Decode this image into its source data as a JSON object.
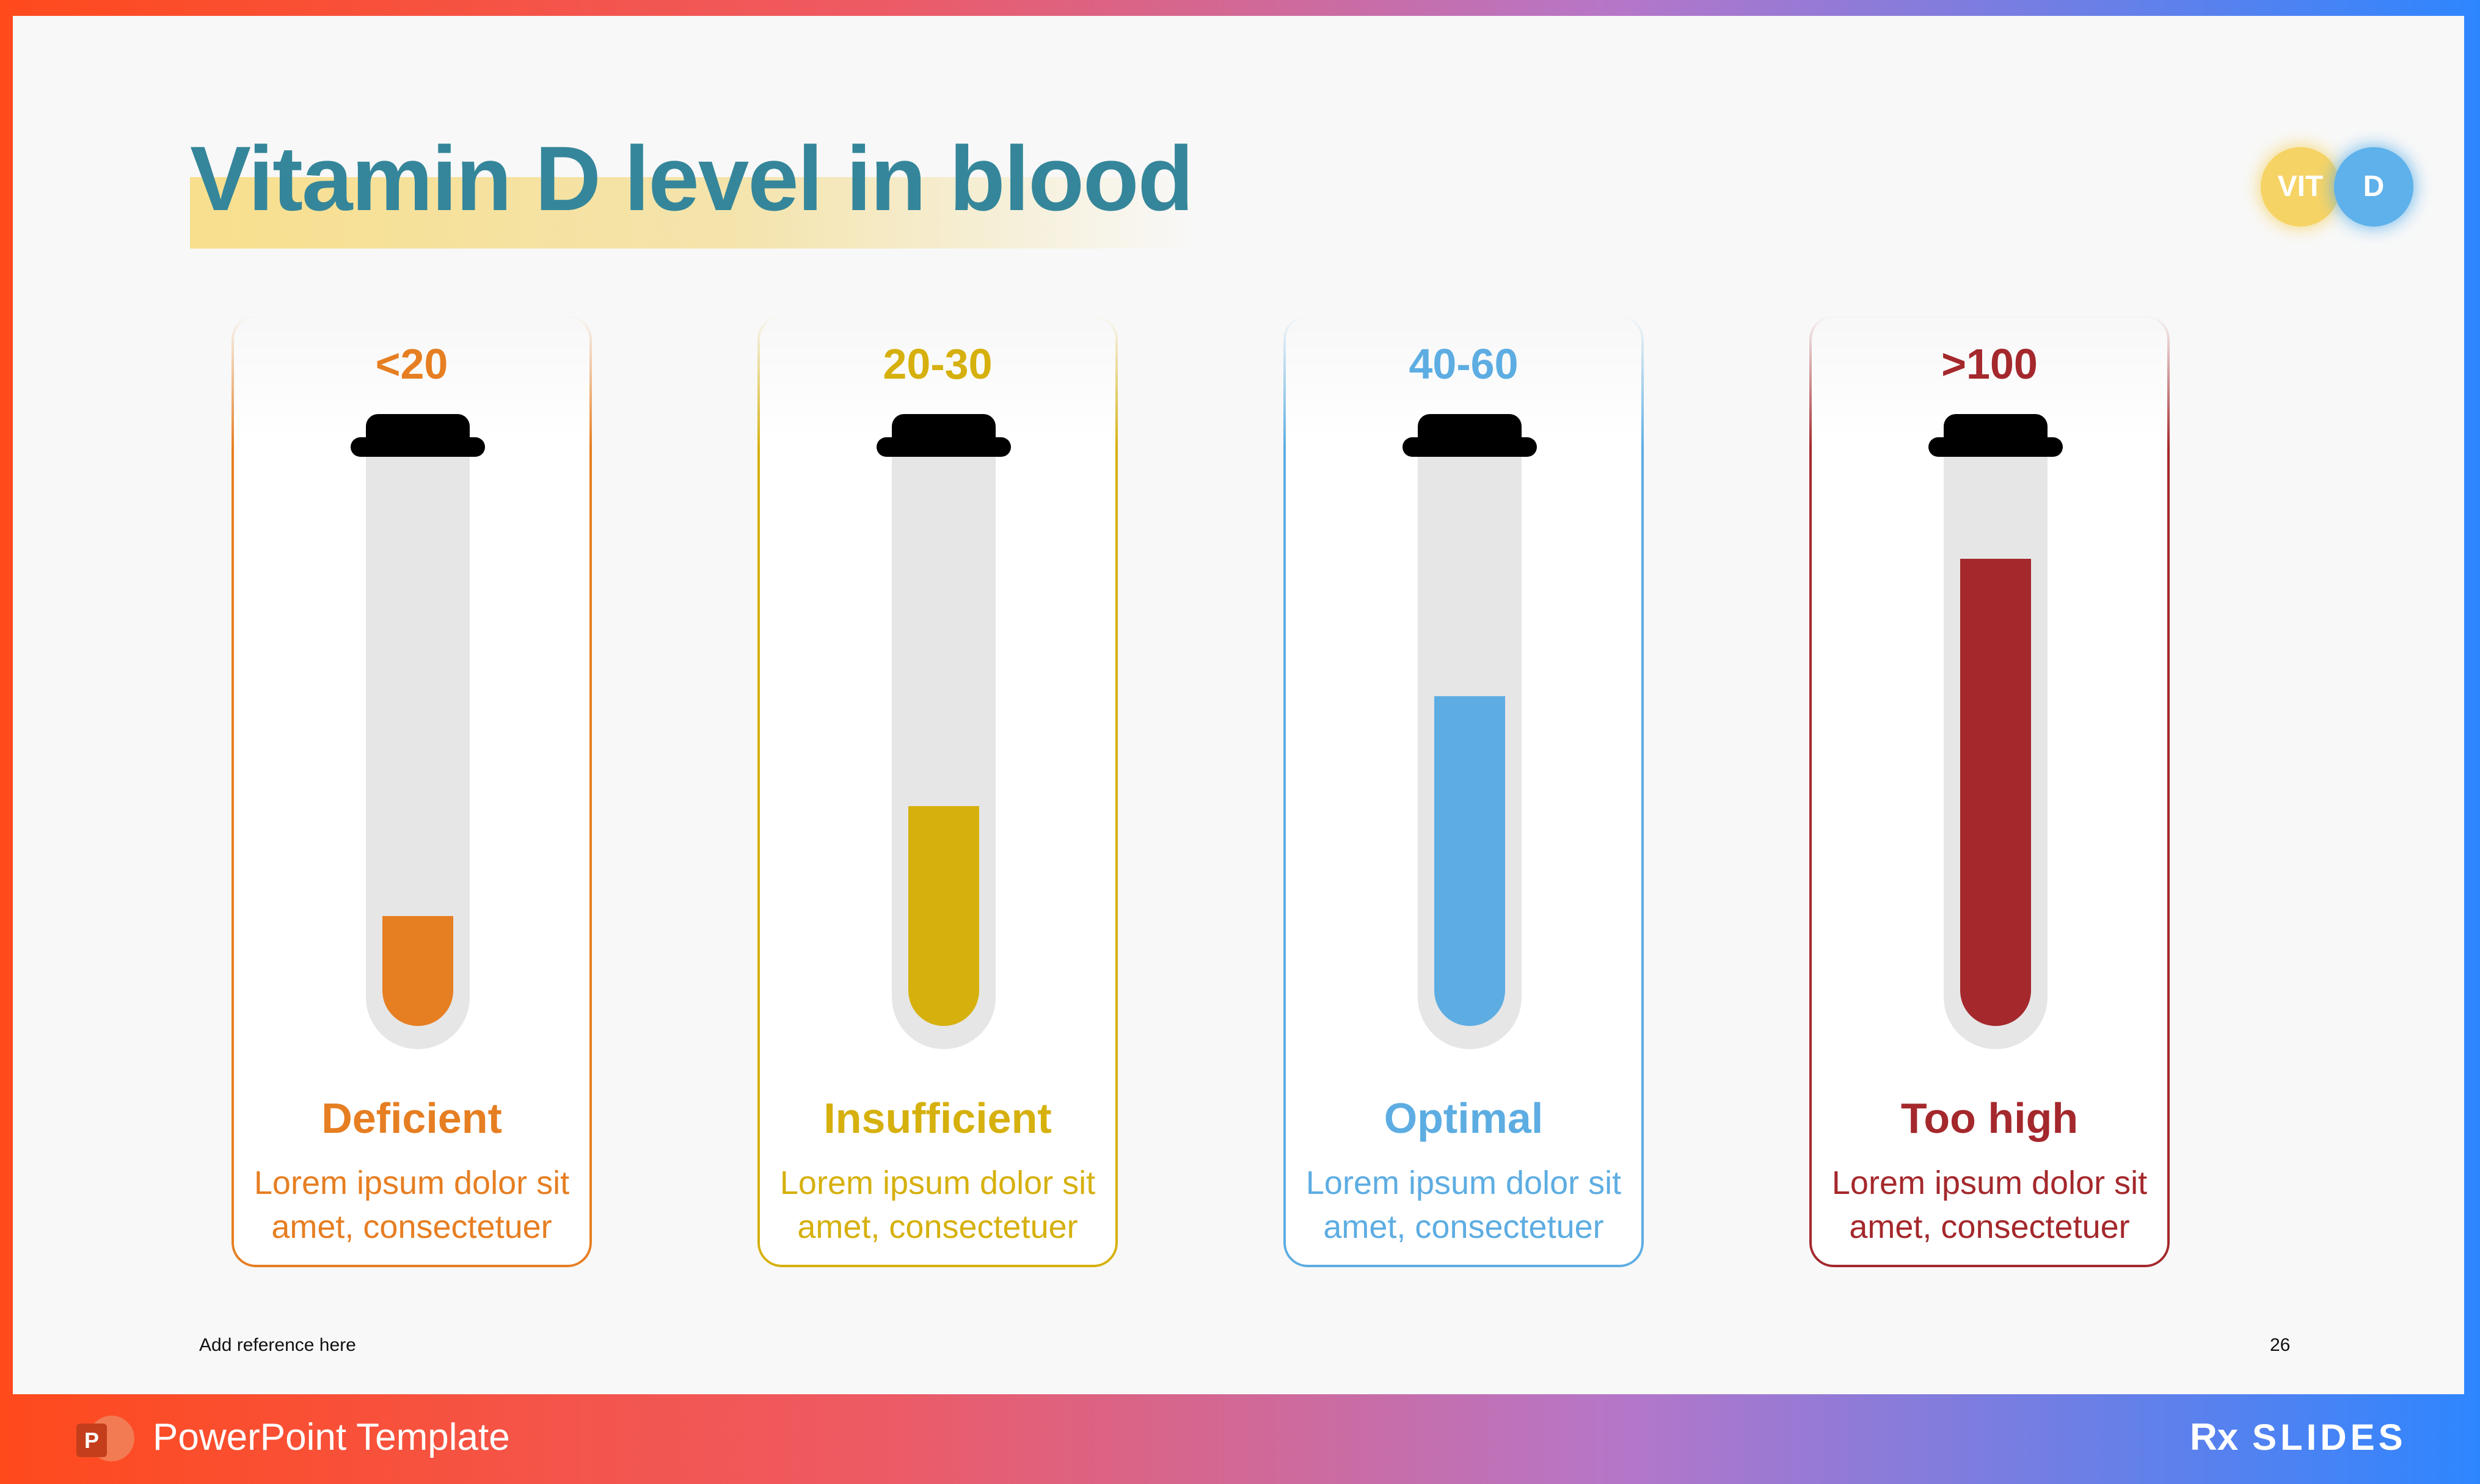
{
  "slide": {
    "title": "Vitamin D level in blood",
    "badge": {
      "left": "VIT",
      "right": "D"
    },
    "reference": "Add reference here",
    "page_number": "26"
  },
  "cards": [
    {
      "range": "<20",
      "status": "Deficient",
      "desc_line1": "Lorem ipsum dolor sit",
      "desc_line2": "amet, consectetuer",
      "color": "#e67e22",
      "fill_fraction": 0.2
    },
    {
      "range": "20-30",
      "status": "Insufficient",
      "desc_line1": "Lorem ipsum dolor sit",
      "desc_line2": "amet, consectetuer",
      "color": "#d6b00d",
      "fill_fraction": 0.4
    },
    {
      "range": "40-60",
      "status": "Optimal",
      "desc_line1": "Lorem ipsum dolor sit",
      "desc_line2": "amet, consectetuer",
      "color": "#5dade2",
      "fill_fraction": 0.6
    },
    {
      "range": ">100",
      "status": "Too high",
      "desc_line1": "Lorem ipsum dolor sit",
      "desc_line2": "amet, consectetuer",
      "color": "#a4282c",
      "fill_fraction": 0.85
    }
  ],
  "footer": {
    "app_icon_letter": "P",
    "title": "PowerPoint Template",
    "brand_rx": "Rx",
    "brand_name": "SLIDES"
  },
  "colors": {
    "title": "#35869a",
    "badge_left": "#f6d365",
    "badge_right": "#5eb1ea"
  }
}
